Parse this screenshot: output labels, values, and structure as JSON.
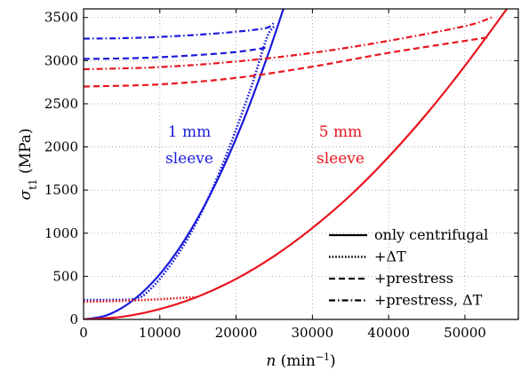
{
  "chart_data": {
    "type": "line",
    "xlabel": "n (min⁻¹)",
    "ylabel": "σt1 (MPa)",
    "xlim": [
      0,
      57000
    ],
    "ylim": [
      0,
      3600
    ],
    "x_ticks": [
      0,
      10000,
      20000,
      30000,
      40000,
      50000
    ],
    "y_ticks": [
      0,
      500,
      1000,
      1500,
      2000,
      2500,
      3000,
      3500
    ],
    "x_tick_labels": [
      "0",
      "10000",
      "20000",
      "30000",
      "40000",
      "50000"
    ],
    "y_tick_labels": [
      "0",
      "500",
      "1000",
      "1500",
      "2000",
      "2500",
      "3000",
      "3500"
    ],
    "grid": "dotted",
    "legend_position": "bottom-right",
    "legend": [
      {
        "label": "only centrifugal",
        "style": "solid"
      },
      {
        "label": "+ΔT",
        "style": "dotted"
      },
      {
        "label": "+prestress",
        "style": "dashed"
      },
      {
        "label": "+prestress, ΔT",
        "style": "dashdot"
      }
    ],
    "annotations": [
      {
        "line1": "1 mm",
        "line2": "sleeve",
        "color": "#1a1adb"
      },
      {
        "line1": "5 mm",
        "line2": "sleeve",
        "color": "#e8141e"
      }
    ],
    "series": [
      {
        "group": "1 mm",
        "style": "solid",
        "color": "#1a1adb",
        "x": [
          0,
          3000,
          6000,
          9000,
          12000,
          15000,
          18000,
          21000,
          24000,
          26200
        ],
        "y": [
          0,
          47,
          190,
          425,
          755,
          1180,
          1700,
          2315,
          3025,
          3600
        ]
      },
      {
        "group": "1 mm",
        "style": "dotted",
        "color": "#1a1adb",
        "x": [
          0,
          3000,
          6000,
          7000,
          8000,
          10000,
          13000,
          16000,
          19000,
          22000,
          24000,
          25000
        ],
        "y": [
          225,
          226,
          230,
          245,
          290,
          470,
          840,
          1340,
          1970,
          2700,
          3260,
          3400
        ]
      },
      {
        "group": "1 mm",
        "style": "dashed",
        "color": "#1a1adb",
        "x": [
          0,
          5000,
          10000,
          15000,
          20000,
          24000
        ],
        "y": [
          3020,
          3025,
          3040,
          3065,
          3100,
          3150
        ]
      },
      {
        "group": "1 mm",
        "style": "dashdot",
        "color": "#1a1adb",
        "x": [
          0,
          5000,
          10000,
          15000,
          20000,
          24000,
          25000
        ],
        "y": [
          3255,
          3260,
          3275,
          3300,
          3335,
          3380,
          3450
        ]
      },
      {
        "group": "5 mm",
        "style": "solid",
        "color": "#e8141e",
        "x": [
          0,
          5000,
          10000,
          15000,
          20000,
          25000,
          30000,
          35000,
          40000,
          45000,
          50000,
          55500
        ],
        "y": [
          0,
          30,
          120,
          265,
          470,
          735,
          1060,
          1440,
          1885,
          2385,
          2940,
          3600
        ]
      },
      {
        "group": "5 mm",
        "style": "dotted",
        "color": "#e8141e",
        "x": [
          0,
          5000,
          10000,
          15000
        ],
        "y": [
          205,
          215,
          235,
          260
        ]
      },
      {
        "group": "5 mm",
        "style": "dashed",
        "color": "#e8141e",
        "x": [
          0,
          10000,
          20000,
          30000,
          40000,
          53000
        ],
        "y": [
          2700,
          2725,
          2800,
          2930,
          3090,
          3270
        ]
      },
      {
        "group": "5 mm",
        "style": "dashdot",
        "color": "#e8141e",
        "x": [
          0,
          10000,
          20000,
          30000,
          40000,
          50000,
          53500
        ],
        "y": [
          2900,
          2925,
          2990,
          3090,
          3230,
          3400,
          3500
        ]
      }
    ]
  }
}
